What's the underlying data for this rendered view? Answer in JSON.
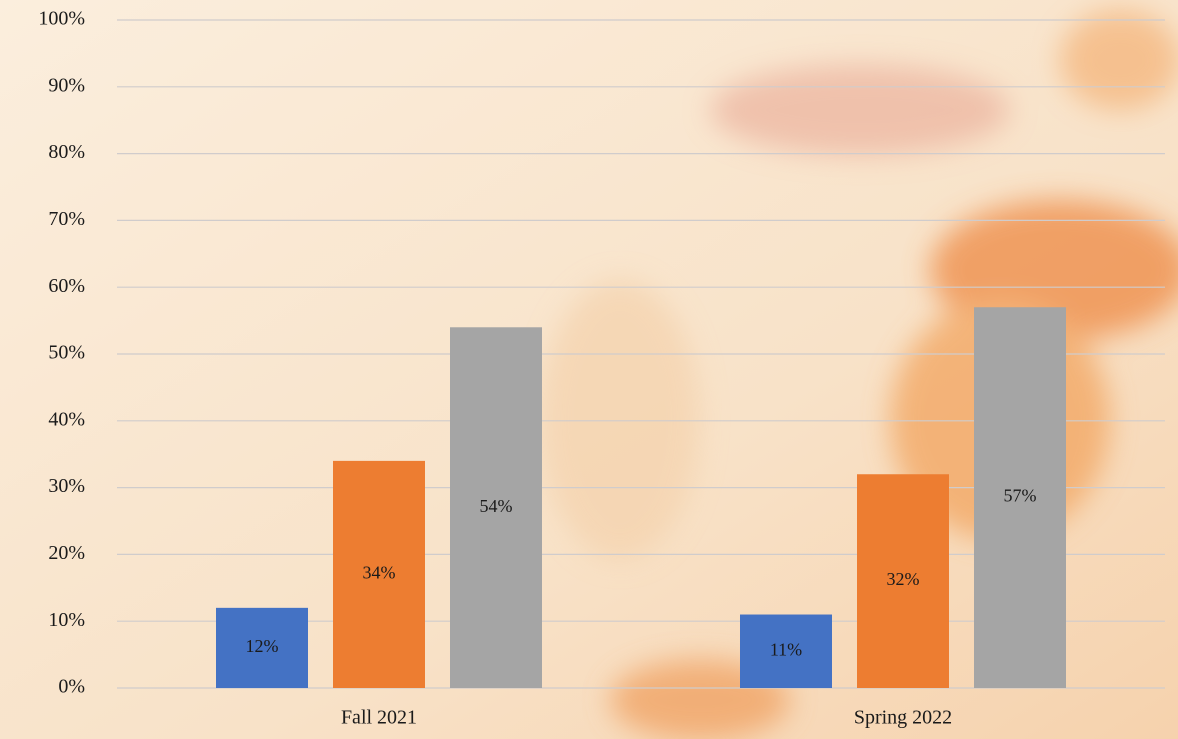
{
  "chart_data": {
    "type": "bar",
    "categories": [
      "Fall 2021",
      "Spring 2022"
    ],
    "series": [
      {
        "color": "#4472c4",
        "values": [
          12,
          11
        ],
        "value_labels": [
          "12%",
          "11%"
        ]
      },
      {
        "color": "#ed7d31",
        "values": [
          34,
          32
        ],
        "value_labels": [
          "34%",
          "32%"
        ]
      },
      {
        "color": "#a5a5a5",
        "values": [
          54,
          57
        ],
        "value_labels": [
          "54%",
          "57%"
        ]
      }
    ],
    "ylim": [
      0,
      100
    ],
    "yticks": [
      {
        "value": 0,
        "label": "0%"
      },
      {
        "value": 10,
        "label": "10%"
      },
      {
        "value": 20,
        "label": "20%"
      },
      {
        "value": 30,
        "label": "30%"
      },
      {
        "value": 40,
        "label": "40%"
      },
      {
        "value": 50,
        "label": "50%"
      },
      {
        "value": 60,
        "label": "60%"
      },
      {
        "value": 70,
        "label": "70%"
      },
      {
        "value": 80,
        "label": "80%"
      },
      {
        "value": 90,
        "label": "90%"
      },
      {
        "value": 100,
        "label": "100%"
      }
    ],
    "grid": true
  }
}
